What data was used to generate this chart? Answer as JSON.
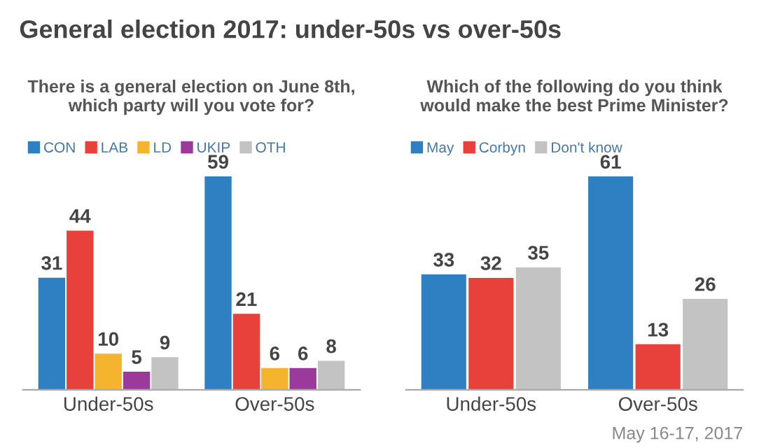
{
  "chart_data": [
    {
      "type": "bar",
      "title": "There is a general election on June 8th,\nwhich party will you vote for?",
      "categories": [
        "Under-50s",
        "Over-50s"
      ],
      "series": [
        {
          "name": "CON",
          "color": "#2f80c3",
          "values": [
            31,
            59
          ]
        },
        {
          "name": "LAB",
          "color": "#e8413b",
          "values": [
            44,
            21
          ]
        },
        {
          "name": "LD",
          "color": "#f5b42e",
          "values": [
            10,
            6
          ]
        },
        {
          "name": "UKIP",
          "color": "#9a3b9c",
          "values": [
            5,
            6
          ]
        },
        {
          "name": "OTH",
          "color": "#c3c3c3",
          "values": [
            9,
            8
          ]
        }
      ],
      "data_labels": true,
      "legend": "top left",
      "grid": false,
      "tick_labels": "x",
      "annotations": [
        "General election 2017: under-50s vs over-50s"
      ]
    },
    {
      "type": "bar",
      "title": "Which of the following do you think\nwould make the best Prime Minister?",
      "categories": [
        "Under-50s",
        "Over-50s"
      ],
      "series": [
        {
          "name": "May",
          "color": "#2f80c3",
          "values": [
            33,
            61
          ]
        },
        {
          "name": "Corbyn",
          "color": "#e8413b",
          "values": [
            32,
            13
          ]
        },
        {
          "name": "Don't know",
          "color": "#c3c3c3",
          "values": [
            35,
            26
          ]
        }
      ],
      "data_labels": true,
      "legend": "top left",
      "grid": false,
      "tick_labels": "x",
      "annotations": [
        "May 16-17, 2017"
      ]
    }
  ]
}
